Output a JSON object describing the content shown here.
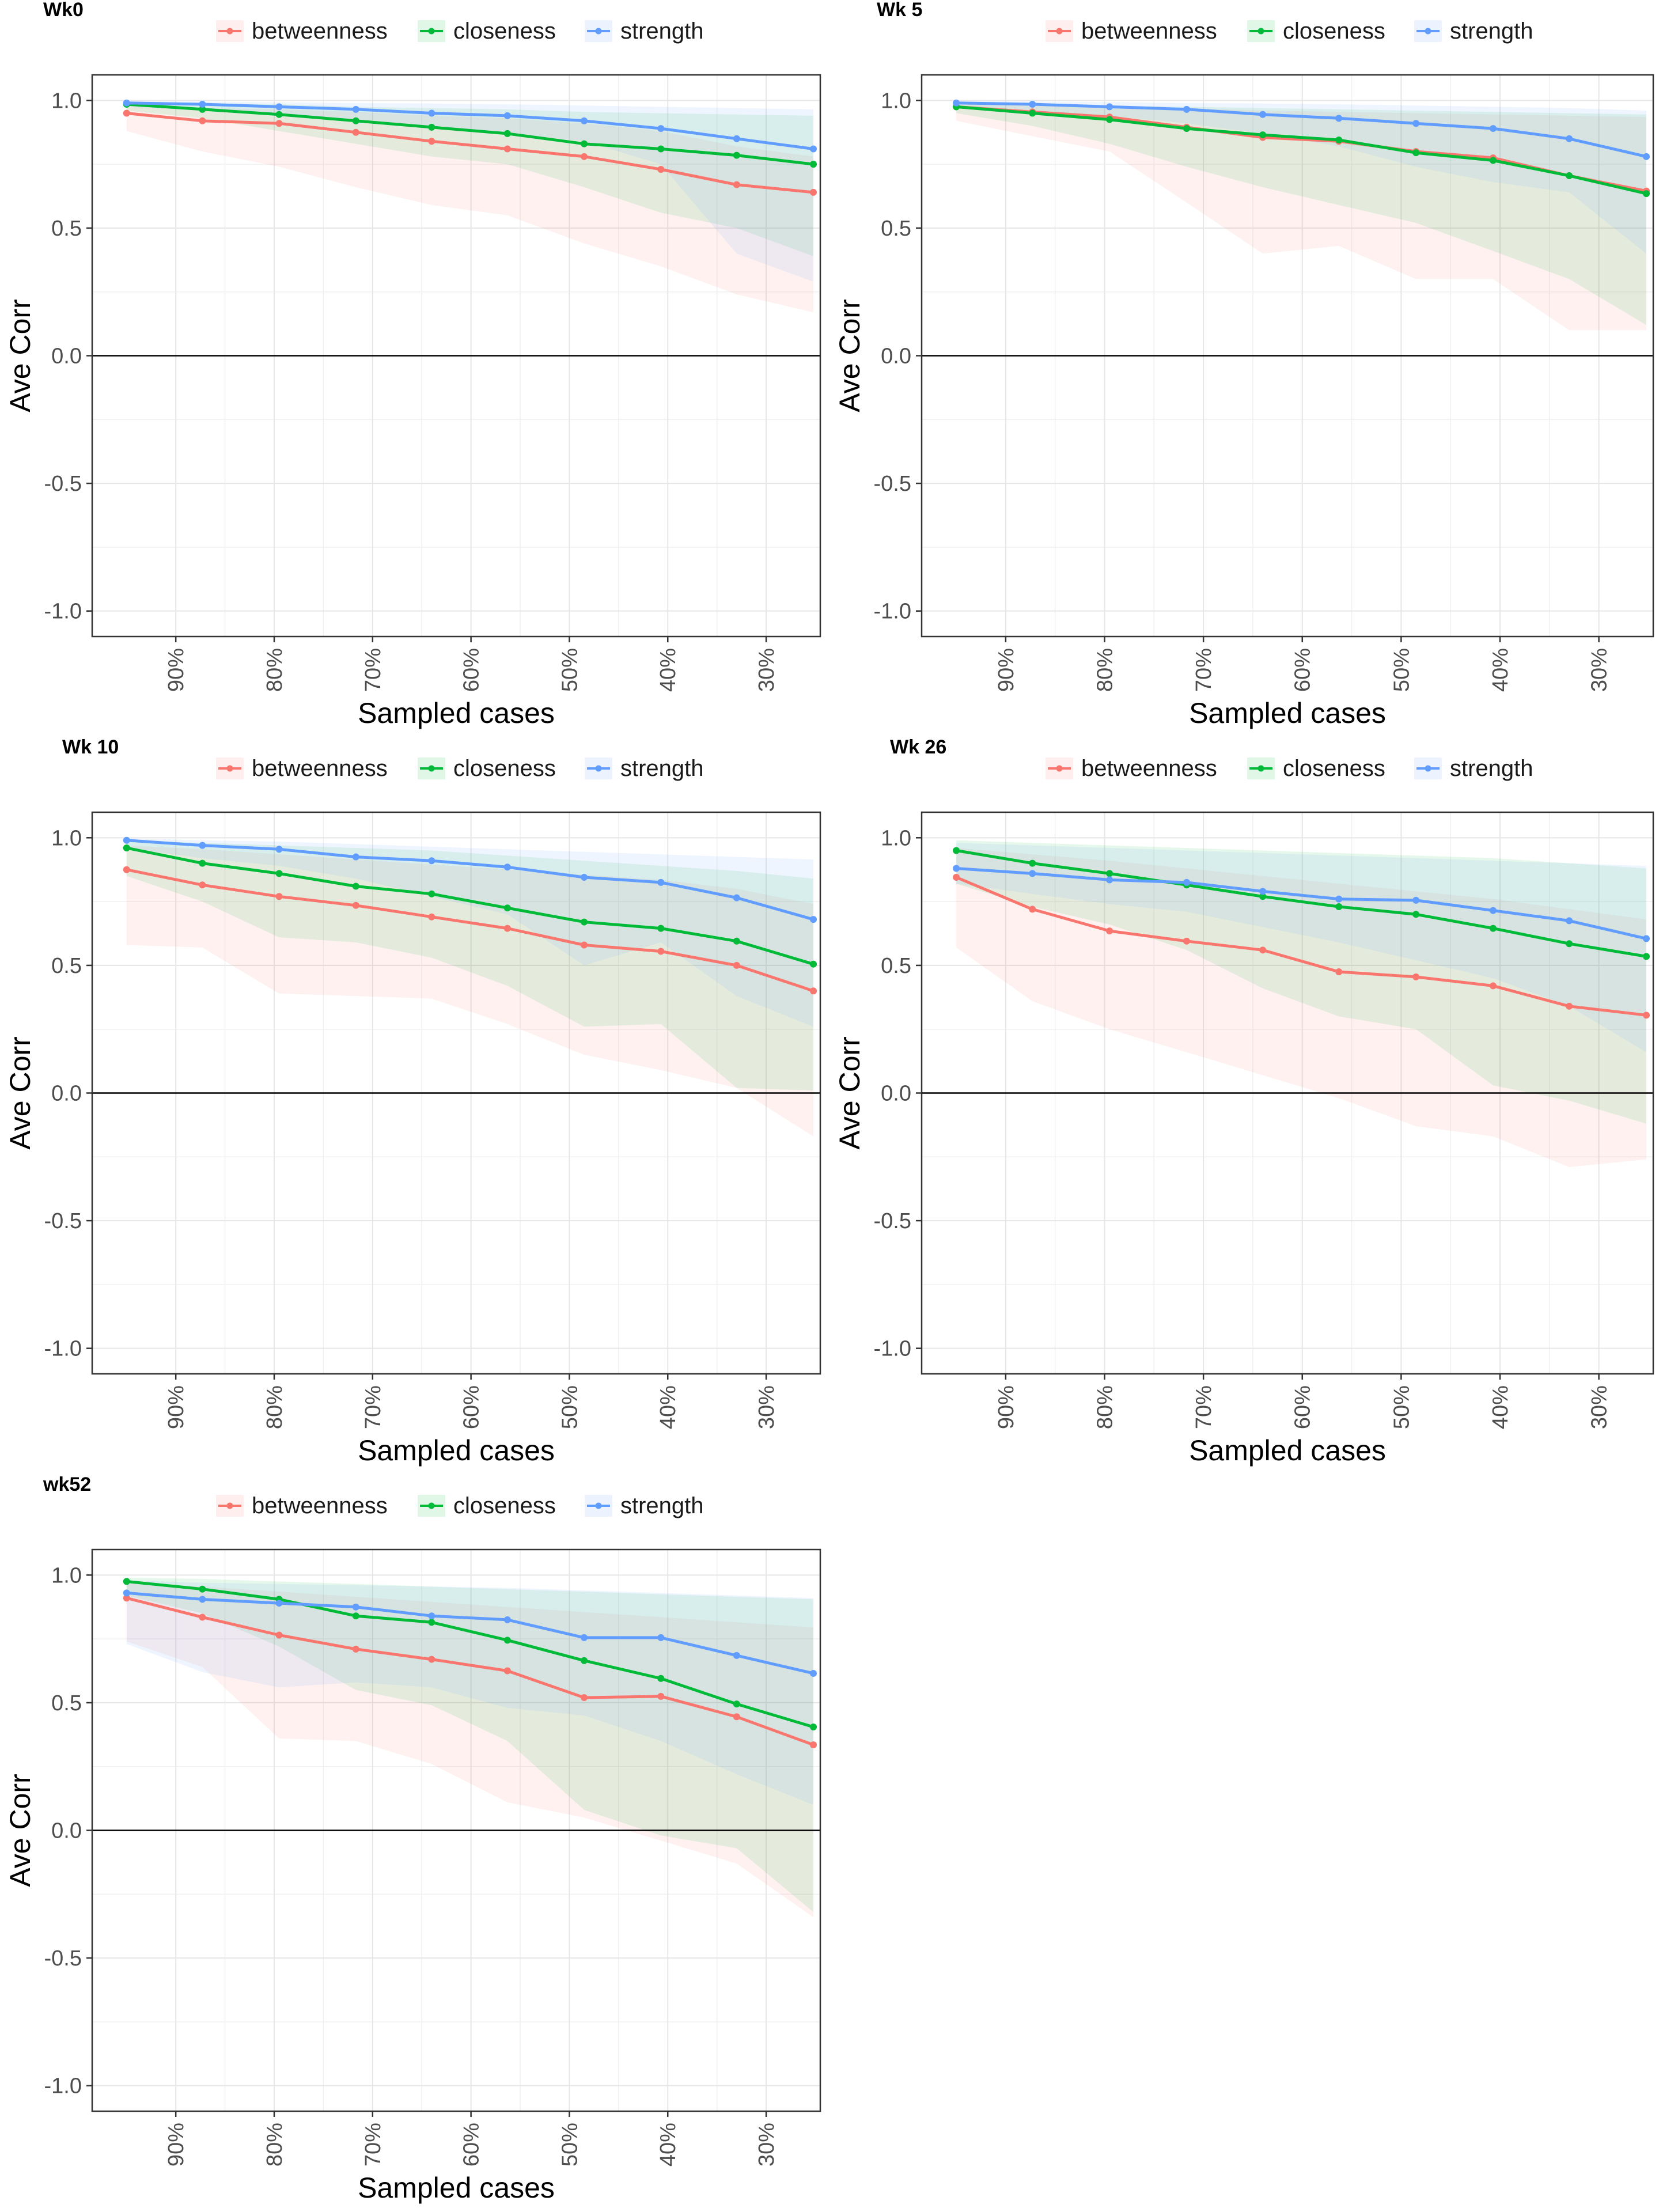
{
  "colors": {
    "betweenness": "#F8766D",
    "closeness": "#00BA38",
    "strength": "#619CFF"
  },
  "chart_data": [
    {
      "type": "line",
      "title": "Wk0",
      "xlabel": "Sampled cases",
      "ylabel": "Ave Corr",
      "ylim": [
        -1.1,
        1.1
      ],
      "yticks": [
        "1.0",
        "0.5",
        "0.0",
        "-0.5",
        "-1.0"
      ],
      "ytick_values": [
        1.0,
        0.5,
        0.0,
        -0.5,
        -1.0
      ],
      "xticks": [
        "90%",
        "80%",
        "70%",
        "60%",
        "50%",
        "40%",
        "30%"
      ],
      "xtick_values": [
        0.9,
        0.8,
        0.7,
        0.6,
        0.5,
        0.4,
        0.3
      ],
      "xlim": [
        0.985,
        0.245
      ],
      "x": [
        0.95,
        0.873,
        0.795,
        0.717,
        0.64,
        0.563,
        0.485,
        0.407,
        0.33,
        0.252
      ],
      "legend": [
        "betweenness",
        "closeness",
        "strength"
      ],
      "series": [
        {
          "name": "betweenness",
          "values": [
            0.95,
            0.92,
            0.91,
            0.875,
            0.84,
            0.81,
            0.78,
            0.73,
            0.67,
            0.64
          ],
          "lower": [
            0.88,
            0.8,
            0.74,
            0.66,
            0.59,
            0.55,
            0.44,
            0.35,
            0.24,
            0.17
          ],
          "upper": [
            0.98,
            0.97,
            0.965,
            0.955,
            0.94,
            0.93,
            0.91,
            0.88,
            0.82,
            0.78
          ]
        },
        {
          "name": "closeness",
          "values": [
            0.985,
            0.965,
            0.945,
            0.92,
            0.895,
            0.87,
            0.83,
            0.81,
            0.785,
            0.75
          ],
          "lower": [
            0.96,
            0.93,
            0.88,
            0.83,
            0.78,
            0.75,
            0.66,
            0.56,
            0.5,
            0.39
          ],
          "upper": [
            0.995,
            0.99,
            0.985,
            0.975,
            0.97,
            0.965,
            0.955,
            0.95,
            0.945,
            0.94
          ]
        },
        {
          "name": "strength",
          "values": [
            0.99,
            0.985,
            0.975,
            0.965,
            0.95,
            0.94,
            0.92,
            0.89,
            0.85,
            0.81
          ],
          "lower": [
            0.975,
            0.96,
            0.945,
            0.92,
            0.9,
            0.87,
            0.84,
            0.75,
            0.4,
            0.29
          ],
          "upper": [
            0.998,
            0.995,
            0.993,
            0.99,
            0.988,
            0.985,
            0.98,
            0.975,
            0.97,
            0.965
          ]
        }
      ]
    },
    {
      "type": "line",
      "title": "Wk 5",
      "xlabel": "Sampled cases",
      "ylabel": "Ave Corr",
      "ylim": [
        -1.1,
        1.1
      ],
      "yticks": [
        "1.0",
        "0.5",
        "0.0",
        "-0.5",
        "-1.0"
      ],
      "ytick_values": [
        1.0,
        0.5,
        0.0,
        -0.5,
        -1.0
      ],
      "xticks": [
        "90%",
        "80%",
        "70%",
        "60%",
        "50%",
        "40%",
        "30%"
      ],
      "xtick_values": [
        0.9,
        0.8,
        0.7,
        0.6,
        0.5,
        0.4,
        0.3
      ],
      "xlim": [
        0.985,
        0.245
      ],
      "x": [
        0.95,
        0.873,
        0.795,
        0.717,
        0.64,
        0.563,
        0.485,
        0.407,
        0.33,
        0.252
      ],
      "legend": [
        "betweenness",
        "closeness",
        "strength"
      ],
      "series": [
        {
          "name": "betweenness",
          "values": [
            0.975,
            0.955,
            0.935,
            0.895,
            0.855,
            0.84,
            0.8,
            0.775,
            0.705,
            0.645
          ],
          "lower": [
            0.92,
            0.86,
            0.8,
            0.6,
            0.4,
            0.43,
            0.3,
            0.3,
            0.1,
            0.1
          ],
          "upper": [
            0.99,
            0.98,
            0.975,
            0.97,
            0.96,
            0.955,
            0.95,
            0.945,
            0.94,
            0.935
          ]
        },
        {
          "name": "closeness",
          "values": [
            0.975,
            0.95,
            0.925,
            0.89,
            0.865,
            0.845,
            0.795,
            0.765,
            0.705,
            0.635
          ],
          "lower": [
            0.95,
            0.9,
            0.83,
            0.74,
            0.66,
            0.59,
            0.52,
            0.41,
            0.3,
            0.12
          ],
          "upper": [
            0.99,
            0.985,
            0.98,
            0.975,
            0.97,
            0.965,
            0.96,
            0.955,
            0.95,
            0.945
          ]
        },
        {
          "name": "strength",
          "values": [
            0.99,
            0.985,
            0.975,
            0.965,
            0.945,
            0.93,
            0.91,
            0.89,
            0.85,
            0.78
          ],
          "lower": [
            0.97,
            0.955,
            0.94,
            0.91,
            0.87,
            0.82,
            0.74,
            0.68,
            0.64,
            0.4
          ],
          "upper": [
            0.998,
            0.996,
            0.994,
            0.99,
            0.988,
            0.985,
            0.98,
            0.975,
            0.97,
            0.96
          ]
        }
      ]
    },
    {
      "type": "line",
      "title": "Wk 10",
      "xlabel": "Sampled cases",
      "ylabel": "Ave Corr",
      "ylim": [
        -1.1,
        1.1
      ],
      "yticks": [
        "1.0",
        "0.5",
        "0.0",
        "-0.5",
        "-1.0"
      ],
      "ytick_values": [
        1.0,
        0.5,
        0.0,
        -0.5,
        -1.0
      ],
      "xticks": [
        "90%",
        "80%",
        "70%",
        "60%",
        "50%",
        "40%",
        "30%"
      ],
      "xtick_values": [
        0.9,
        0.8,
        0.7,
        0.6,
        0.5,
        0.4,
        0.3
      ],
      "xlim": [
        0.985,
        0.245
      ],
      "x": [
        0.95,
        0.873,
        0.795,
        0.717,
        0.64,
        0.563,
        0.485,
        0.407,
        0.33,
        0.252
      ],
      "legend": [
        "betweenness",
        "closeness",
        "strength"
      ],
      "series": [
        {
          "name": "betweenness",
          "values": [
            0.875,
            0.815,
            0.77,
            0.735,
            0.69,
            0.645,
            0.58,
            0.555,
            0.5,
            0.4
          ],
          "lower": [
            0.58,
            0.57,
            0.39,
            0.38,
            0.37,
            0.27,
            0.15,
            0.09,
            0.02,
            -0.17
          ],
          "upper": [
            0.97,
            0.955,
            0.935,
            0.915,
            0.895,
            0.875,
            0.855,
            0.835,
            0.8,
            0.74
          ]
        },
        {
          "name": "closeness",
          "values": [
            0.96,
            0.9,
            0.86,
            0.81,
            0.78,
            0.725,
            0.67,
            0.645,
            0.595,
            0.505
          ],
          "lower": [
            0.85,
            0.75,
            0.61,
            0.59,
            0.53,
            0.42,
            0.26,
            0.27,
            0.02,
            0.01
          ],
          "upper": [
            0.99,
            0.98,
            0.97,
            0.96,
            0.95,
            0.93,
            0.91,
            0.89,
            0.87,
            0.84
          ]
        },
        {
          "name": "strength",
          "values": [
            0.99,
            0.97,
            0.955,
            0.925,
            0.91,
            0.885,
            0.845,
            0.825,
            0.765,
            0.68
          ],
          "lower": [
            0.96,
            0.92,
            0.89,
            0.84,
            0.77,
            0.7,
            0.5,
            0.59,
            0.38,
            0.26
          ],
          "upper": [
            0.998,
            0.99,
            0.985,
            0.975,
            0.965,
            0.955,
            0.945,
            0.935,
            0.925,
            0.915
          ]
        }
      ]
    },
    {
      "type": "line",
      "title": "Wk 26",
      "xlabel": "Sampled cases",
      "ylabel": "Ave Corr",
      "ylim": [
        -1.1,
        1.1
      ],
      "yticks": [
        "1.0",
        "0.5",
        "0.0",
        "-0.5",
        "-1.0"
      ],
      "ytick_values": [
        1.0,
        0.5,
        0.0,
        -0.5,
        -1.0
      ],
      "xticks": [
        "90%",
        "80%",
        "70%",
        "60%",
        "50%",
        "40%",
        "30%"
      ],
      "xtick_values": [
        0.9,
        0.8,
        0.7,
        0.6,
        0.5,
        0.4,
        0.3
      ],
      "xlim": [
        0.985,
        0.245
      ],
      "x": [
        0.95,
        0.873,
        0.795,
        0.717,
        0.64,
        0.563,
        0.485,
        0.407,
        0.33,
        0.252
      ],
      "legend": [
        "betweenness",
        "closeness",
        "strength"
      ],
      "series": [
        {
          "name": "betweenness",
          "values": [
            0.845,
            0.72,
            0.635,
            0.595,
            0.56,
            0.475,
            0.455,
            0.42,
            0.34,
            0.305
          ],
          "lower": [
            0.57,
            0.36,
            0.25,
            0.16,
            0.07,
            -0.02,
            -0.13,
            -0.17,
            -0.29,
            -0.26
          ],
          "upper": [
            0.96,
            0.935,
            0.91,
            0.88,
            0.85,
            0.82,
            0.79,
            0.76,
            0.72,
            0.68
          ]
        },
        {
          "name": "closeness",
          "values": [
            0.95,
            0.9,
            0.86,
            0.815,
            0.77,
            0.73,
            0.7,
            0.645,
            0.585,
            0.535
          ],
          "lower": [
            0.82,
            0.73,
            0.66,
            0.56,
            0.41,
            0.3,
            0.25,
            0.03,
            -0.03,
            -0.12
          ],
          "upper": [
            0.99,
            0.98,
            0.97,
            0.96,
            0.95,
            0.94,
            0.93,
            0.92,
            0.9,
            0.88
          ]
        },
        {
          "name": "strength",
          "values": [
            0.88,
            0.86,
            0.835,
            0.825,
            0.79,
            0.76,
            0.755,
            0.715,
            0.675,
            0.605
          ],
          "lower": [
            0.82,
            0.78,
            0.74,
            0.71,
            0.65,
            0.59,
            0.52,
            0.45,
            0.34,
            0.16
          ],
          "upper": [
            0.98,
            0.97,
            0.96,
            0.95,
            0.94,
            0.93,
            0.92,
            0.91,
            0.9,
            0.89
          ]
        }
      ]
    },
    {
      "type": "line",
      "title": "wk52",
      "xlabel": "Sampled cases",
      "ylabel": "Ave Corr",
      "ylim": [
        -1.1,
        1.1
      ],
      "yticks": [
        "1.0",
        "0.5",
        "0.0",
        "-0.5",
        "-1.0"
      ],
      "ytick_values": [
        1.0,
        0.5,
        0.0,
        -0.5,
        -1.0
      ],
      "xticks": [
        "90%",
        "80%",
        "70%",
        "60%",
        "50%",
        "40%",
        "30%"
      ],
      "xtick_values": [
        0.9,
        0.8,
        0.7,
        0.6,
        0.5,
        0.4,
        0.3
      ],
      "xlim": [
        0.985,
        0.245
      ],
      "x": [
        0.95,
        0.873,
        0.795,
        0.717,
        0.64,
        0.563,
        0.485,
        0.407,
        0.33,
        0.252
      ],
      "legend": [
        "betweenness",
        "closeness",
        "strength"
      ],
      "series": [
        {
          "name": "betweenness",
          "values": [
            0.91,
            0.835,
            0.765,
            0.71,
            0.67,
            0.625,
            0.52,
            0.525,
            0.445,
            0.335
          ],
          "lower": [
            0.74,
            0.64,
            0.36,
            0.35,
            0.26,
            0.11,
            0.05,
            -0.04,
            -0.13,
            -0.34
          ],
          "upper": [
            0.97,
            0.955,
            0.935,
            0.915,
            0.895,
            0.875,
            0.855,
            0.835,
            0.815,
            0.795
          ]
        },
        {
          "name": "closeness",
          "values": [
            0.975,
            0.945,
            0.905,
            0.84,
            0.815,
            0.745,
            0.665,
            0.595,
            0.495,
            0.405
          ],
          "lower": [
            0.92,
            0.85,
            0.72,
            0.55,
            0.49,
            0.35,
            0.08,
            -0.02,
            -0.07,
            -0.32
          ],
          "upper": [
            0.99,
            0.985,
            0.975,
            0.965,
            0.955,
            0.945,
            0.935,
            0.925,
            0.915,
            0.905
          ]
        },
        {
          "name": "strength",
          "values": [
            0.93,
            0.905,
            0.89,
            0.875,
            0.84,
            0.825,
            0.755,
            0.755,
            0.685,
            0.615
          ],
          "lower": [
            0.73,
            0.62,
            0.56,
            0.58,
            0.56,
            0.48,
            0.45,
            0.35,
            0.22,
            0.1
          ],
          "upper": [
            0.98,
            0.97,
            0.965,
            0.96,
            0.955,
            0.95,
            0.94,
            0.93,
            0.92,
            0.91
          ]
        }
      ]
    }
  ]
}
